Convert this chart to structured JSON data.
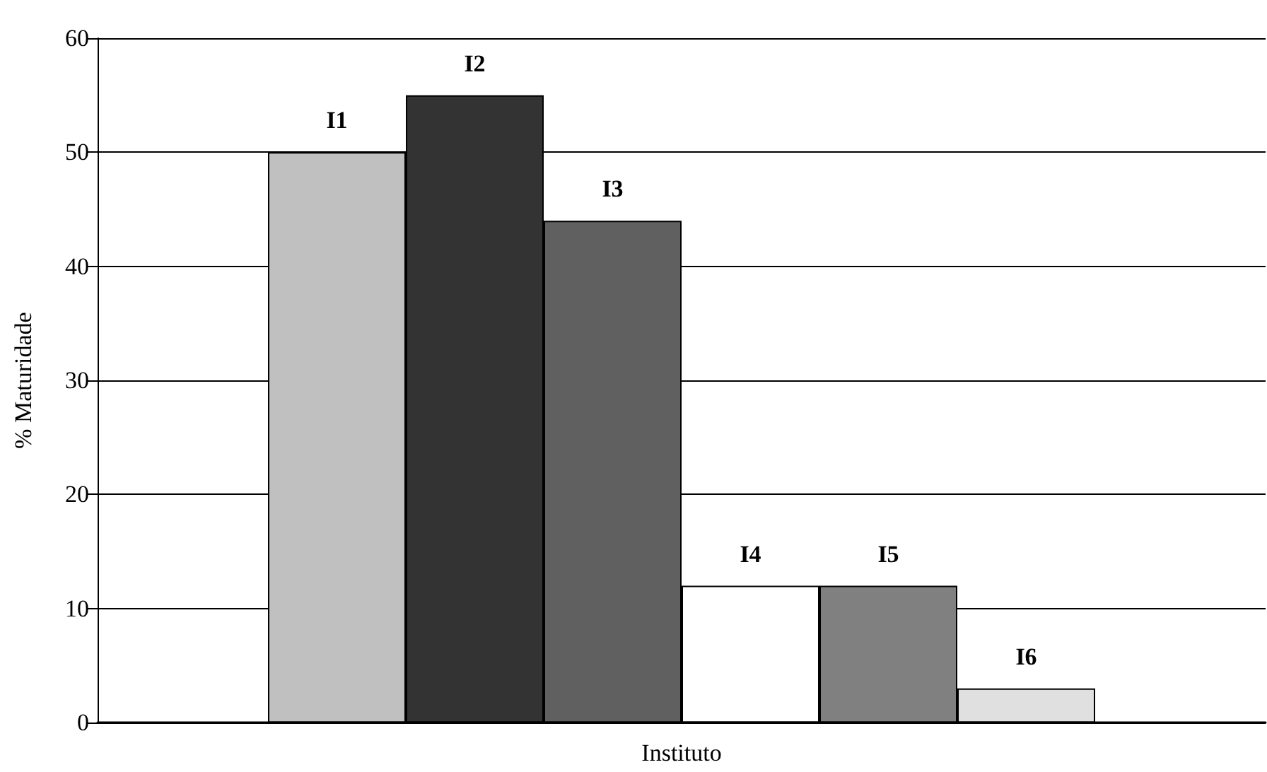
{
  "chart_data": {
    "type": "bar",
    "xlabel": "Instituto",
    "ylabel": "% Maturidade",
    "categories": [
      null
    ],
    "series": [
      {
        "name": "I1",
        "color": "#c0c0c0",
        "values": [
          50
        ]
      },
      {
        "name": "I2",
        "color": "#333333",
        "values": [
          55
        ]
      },
      {
        "name": "I3",
        "color": "#606060",
        "values": [
          44
        ]
      },
      {
        "name": "I4",
        "color": "#ffffff",
        "values": [
          12
        ]
      },
      {
        "name": "I5",
        "color": "#808080",
        "values": [
          12
        ]
      },
      {
        "name": "I6",
        "color": "#e0e0e0",
        "values": [
          3
        ]
      }
    ],
    "ylim": [
      0,
      60
    ],
    "yticks": [
      0,
      10,
      20,
      30,
      40,
      50,
      60
    ],
    "grid": "y",
    "legend": false
  }
}
